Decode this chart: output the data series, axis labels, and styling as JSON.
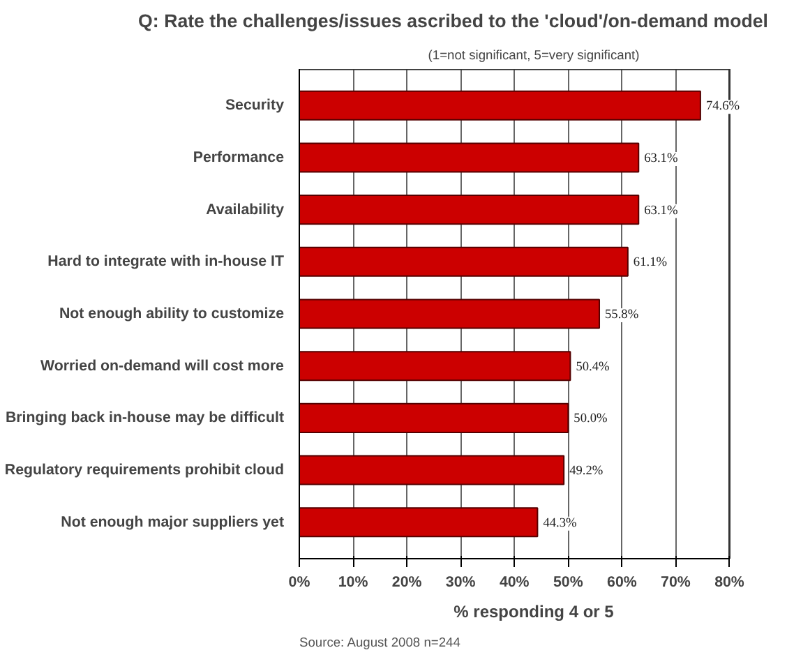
{
  "chart_data": {
    "type": "bar",
    "orientation": "horizontal",
    "title": "Q: Rate the challenges/issues ascribed to the 'cloud'/on-demand model",
    "subtitle": "(1=not significant, 5=very significant)",
    "xlabel": "% responding 4 or 5",
    "categories": [
      "Security",
      "Performance",
      "Availability",
      "Hard to integrate with in-house IT",
      "Not enough ability to customize",
      "Worried on-demand will cost more",
      "Bringing back in-house may be difficult",
      "Regulatory requirements prohibit cloud",
      "Not enough major suppliers yet"
    ],
    "values": [
      74.6,
      63.1,
      63.1,
      61.1,
      55.8,
      50.4,
      50.0,
      49.2,
      44.3
    ],
    "value_labels": [
      "74.6%",
      "63.1%",
      "63.1%",
      "61.1%",
      "55.8%",
      "50.4%",
      "50.0%",
      "49.2%",
      "44.3%"
    ],
    "color": "#cc0000",
    "xlim": [
      0,
      80
    ],
    "xticks": [
      {
        "value": 0,
        "label": "0%"
      },
      {
        "value": 10,
        "label": "10%"
      },
      {
        "value": 20,
        "label": "20%"
      },
      {
        "value": 30,
        "label": "30%"
      },
      {
        "value": 40,
        "label": "40%"
      },
      {
        "value": 50,
        "label": "50%"
      },
      {
        "value": 60,
        "label": "60%"
      },
      {
        "value": 70,
        "label": "70%"
      },
      {
        "value": 80,
        "label": "80%"
      }
    ],
    "grid": "x",
    "annotations": [
      "Source: August 2008 n=244"
    ]
  }
}
